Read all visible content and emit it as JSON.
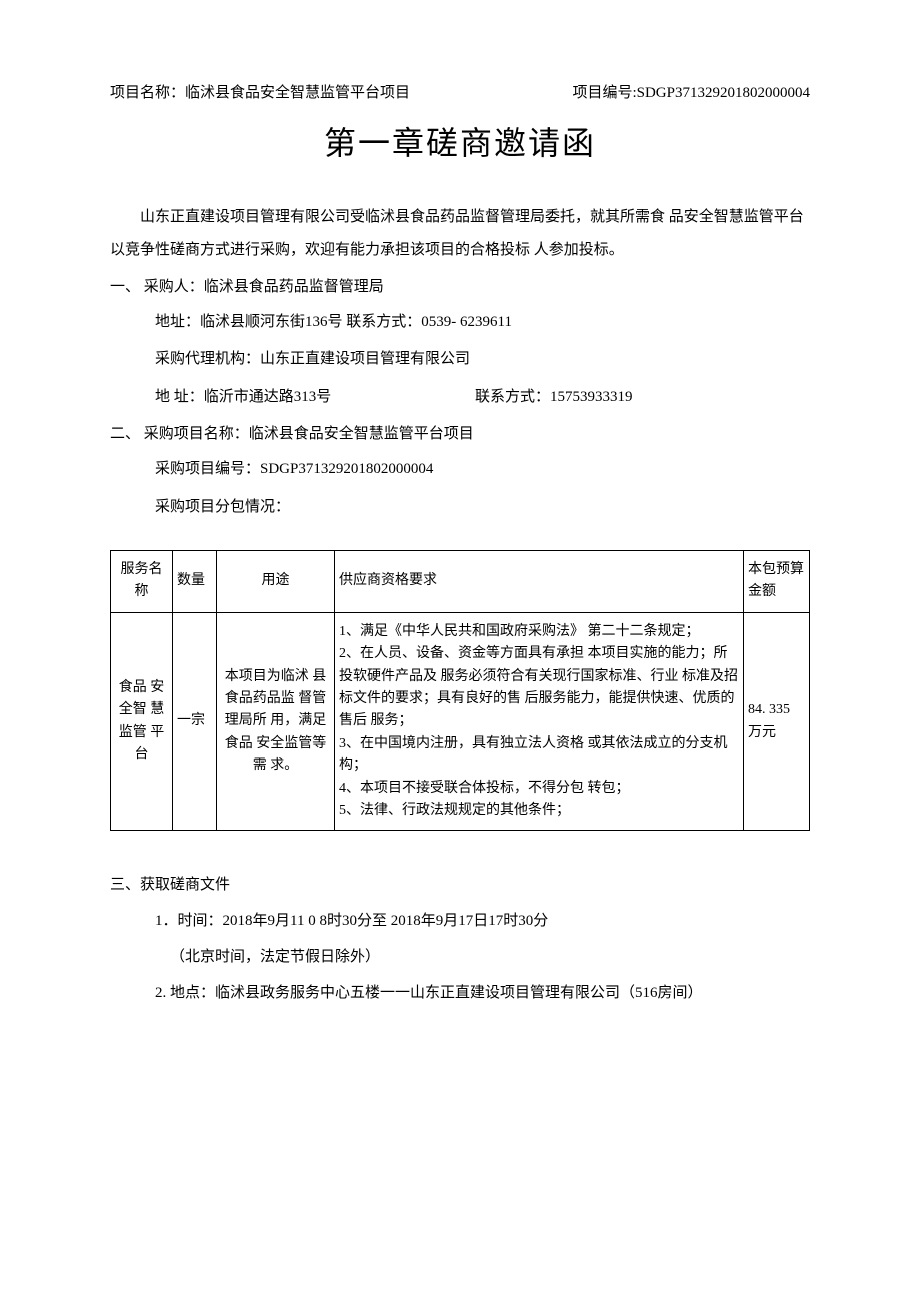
{
  "header": {
    "project_name_label": "项目名称：临沭县食品安全智慧监管平台项目",
    "project_code_label": "项目编号:SDGP371329201802000004"
  },
  "title": "第一章磋商邀请函",
  "intro_text": "山东正直建设项目管理有限公司受临沭县食品药品监督管理局委托，就其所需食 品安全智慧监管平台以竞争性磋商方式进行采购，欢迎有能力承担该项目的合格投标 人参加投标。",
  "section1": {
    "head": "一、 采购人：临沭县食品药品监督管理局",
    "address": "地址：临沭县顺河东街136号 联系方式：0539- 6239611",
    "agency": "采购代理机构：山东正直建设项目管理有限公司",
    "agency_addr_left": "地 址：临沂市通达路313号",
    "agency_addr_right": "联系方式：15753933319"
  },
  "section2": {
    "head": "二、 采购项目名称：临沭县食品安全智慧监管平台项目",
    "code": "采购项目编号：SDGP371329201802000004",
    "package": "采购项目分包情况："
  },
  "table": {
    "columns": [
      "服务名称",
      "数量",
      "用途",
      "供应商资格要求",
      "本包预算金额"
    ],
    "row": {
      "name": "食品 安全智 慧监管 平台",
      "qty": "一宗",
      "purpose": "本项目为临沭 县食品药品监 督管理局所 用，满足食品 安全监管等 需 求。",
      "requirements": "1、满足《中华人民共和国政府采购法》 第二十二条规定；\n2、在人员、设备、资金等方面具有承担 本项目实施的能力；所投软硬件产品及  服务必须符合有关现行国家标准、行业  标准及招标文件的要求；具有良好的售  后服务能力，能提供快速、优质的售后  服务；\n3、在中国境内注册，具有独立法人资格 或其依法成立的分支机构；\n4、本项目不接受联合体投标，不得分包 转包；\n5、法律、行政法规规定的其他条件；",
      "budget": "84. 335 万元"
    }
  },
  "section3": {
    "head": "三、获取磋商文件",
    "item1": "1．时间：2018年9月11 0 8时30分至 2018年9月17日17时30分",
    "item1_sub": "（北京时间，法定节假日除外）",
    "item2": "2. 地点：临沭县政务服务中心五楼一一山东正直建设项目管理有限公司（516房间）"
  }
}
